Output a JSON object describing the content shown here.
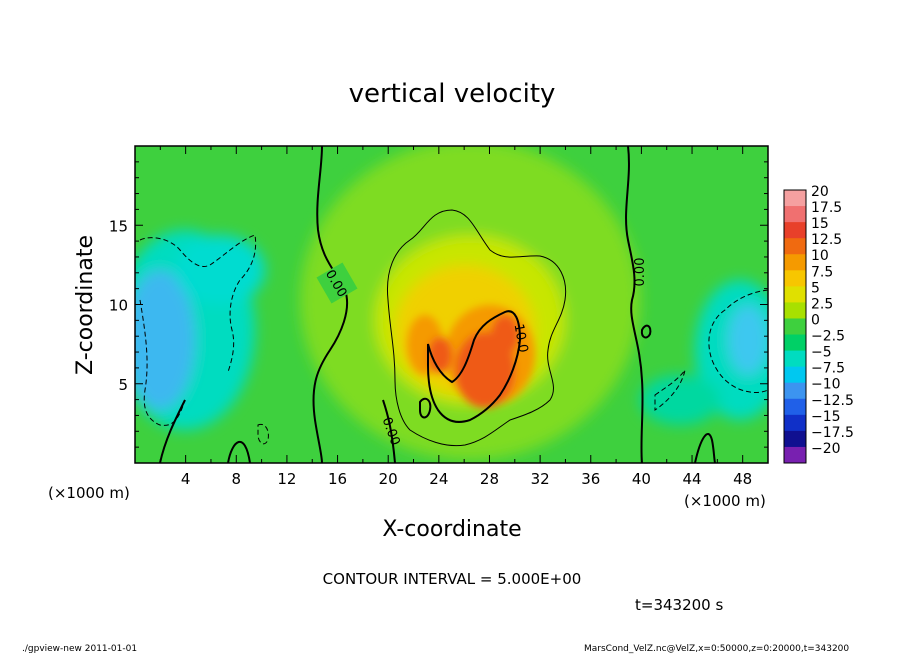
{
  "chart_data": {
    "type": "heatmap",
    "title": "vertical velocity",
    "xlabel": "X-coordinate",
    "ylabel": "Z-coordinate",
    "x_unit": "(×1000 m)",
    "y_unit": "(×1000 m)",
    "xlim": [
      0,
      50
    ],
    "ylim": [
      0,
      20
    ],
    "x_ticks": [
      "4",
      "8",
      "12",
      "16",
      "20",
      "24",
      "28",
      "32",
      "36",
      "40",
      "44",
      "48"
    ],
    "y_ticks": [
      "5",
      "10",
      "15"
    ],
    "colorbar": {
      "labels": [
        "20",
        "17.5",
        "15",
        "12.5",
        "10",
        "7.5",
        "5",
        "2.5",
        "0",
        "−2.5",
        "−5",
        "−7.5",
        "−10",
        "−12.5",
        "−15",
        "−17.5",
        "−20"
      ],
      "colors": [
        "#f5a0a0",
        "#f07070",
        "#e8402a",
        "#f06a10",
        "#f59a00",
        "#f7c600",
        "#e0e000",
        "#a8e000",
        "#3ed03e",
        "#00d066",
        "#00dcc0",
        "#00c8f0",
        "#3c94f0",
        "#2060e8",
        "#1030c8",
        "#101090",
        "#7820b0"
      ]
    },
    "contour_labels": [
      "0.00",
      "0.00",
      "0.00",
      "10.0"
    ],
    "contour_interval_text": "CONTOUR INTERVAL = 5.000E+00",
    "time_text": "t=343200 s",
    "footer_left": "./gpview-new   2011-01-01",
    "footer_right": "MarsCond_VelZ.nc@VelZ,x=0:50000,z=0:20000,t=343200"
  }
}
